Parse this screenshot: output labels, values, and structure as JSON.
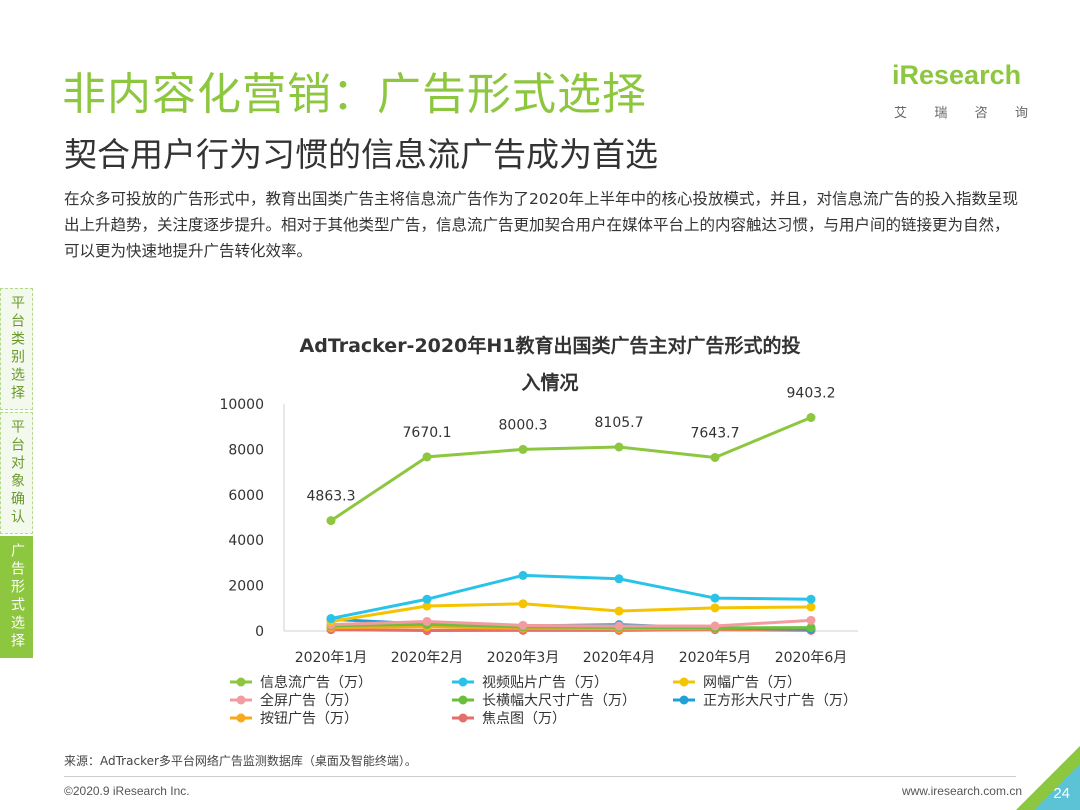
{
  "header": {
    "title": "非内容化营销：广告形式选择",
    "subtitle": "契合用户行为习惯的信息流广告成为首选",
    "intro": "在众多可投放的广告形式中，教育出国类广告主将信息流广告作为了2020年上半年中的核心投放模式，并且，对信息流广告的投入指数呈现出上升趋势，关注度逐步提升。相对于其他类型广告，信息流广告更加契合用户在媒体平台上的内容触达习惯，与用户间的链接更为自然，可以更为快速地提升广告转化效率。"
  },
  "logo": {
    "brand": "iResearch",
    "sub": [
      "艾",
      "瑞",
      "咨",
      "询"
    ],
    "color": "#8dc63f"
  },
  "side_nav": [
    {
      "label": "平台类别选择",
      "active": false
    },
    {
      "label": "平台对象确认",
      "active": false
    },
    {
      "label": "广告形式选择",
      "active": true
    }
  ],
  "chart_data": {
    "type": "line",
    "title_line1": "AdTracker-2020年H1教育出国类广告主对广告形式的投",
    "title_line2": "入情况",
    "categories": [
      "2020年1月",
      "2020年2月",
      "2020年3月",
      "2020年4月",
      "2020年5月",
      "2020年6月"
    ],
    "ylim": [
      0,
      10000
    ],
    "yticks": [
      "0",
      "2000",
      "4000",
      "6000",
      "8000",
      "10000"
    ],
    "series": [
      {
        "name": "信息流广告（万）",
        "color": "#8dc63f",
        "values": [
          4863.3,
          7670.1,
          8000.3,
          8105.7,
          7643.7,
          9403.2
        ],
        "labels": [
          "4863.3",
          "7670.1",
          "8000.3",
          "8105.7",
          "7643.7",
          "9403.2"
        ]
      },
      {
        "name": "视频贴片广告（万）",
        "color": "#29c3e8",
        "values": [
          550,
          1400,
          2450,
          2300,
          1450,
          1400
        ]
      },
      {
        "name": "网幅广告（万）",
        "color": "#f5c400",
        "values": [
          420,
          1100,
          1200,
          880,
          1020,
          1060
        ]
      },
      {
        "name": "全屏广告（万）",
        "color": "#f29ca0",
        "values": [
          280,
          420,
          250,
          220,
          220,
          470
        ]
      },
      {
        "name": "长横幅大尺寸广告（万）",
        "color": "#6cbf3e",
        "values": [
          230,
          300,
          180,
          160,
          140,
          150
        ]
      },
      {
        "name": "正方形大尺寸广告（万）",
        "color": "#1fa0d8",
        "values": [
          520,
          300,
          220,
          280,
          130,
          80
        ]
      },
      {
        "name": "按钮广告（万）",
        "color": "#f7a81b",
        "values": [
          150,
          180,
          120,
          100,
          100,
          90
        ]
      },
      {
        "name": "焦点图（万）",
        "color": "#e56d6d",
        "values": [
          60,
          20,
          30,
          30,
          60,
          30
        ]
      }
    ],
    "legend_position": "bottom",
    "grid": false
  },
  "footer": {
    "source": "来源：AdTracker多平台网络广告监测数据库（桌面及智能终端）。",
    "copyright": "©2020.9 iResearch Inc.",
    "website": "www.iresearch.com.cn",
    "page": "24"
  }
}
